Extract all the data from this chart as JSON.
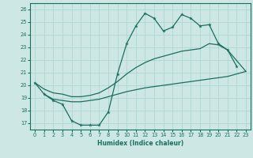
{
  "xlabel": "Humidex (Indice chaleur)",
  "background_color": "#cde8e4",
  "grid_color": "#aed4cf",
  "line_color": "#1a6e60",
  "ylim": [
    16.5,
    26.5
  ],
  "xlim": [
    -0.5,
    23.5
  ],
  "yticks": [
    17,
    18,
    19,
    20,
    21,
    22,
    23,
    24,
    25,
    26
  ],
  "xticks": [
    0,
    1,
    2,
    3,
    4,
    5,
    6,
    7,
    8,
    9,
    10,
    11,
    12,
    13,
    14,
    15,
    16,
    17,
    18,
    19,
    20,
    21,
    22,
    23
  ],
  "x_jagged": [
    0,
    1,
    2,
    3,
    4,
    5,
    6,
    7,
    8,
    9,
    10,
    11,
    12,
    13,
    14,
    15,
    16,
    17,
    18,
    19,
    20,
    21,
    22
  ],
  "y_jagged": [
    20.2,
    19.3,
    18.8,
    18.5,
    17.2,
    16.85,
    16.85,
    16.85,
    17.9,
    20.9,
    23.3,
    24.7,
    25.7,
    25.3,
    24.3,
    24.6,
    25.6,
    25.3,
    24.7,
    24.8,
    23.3,
    22.8,
    21.5
  ],
  "x_upper": [
    0,
    1,
    2,
    3,
    4,
    5,
    6,
    7,
    8,
    9,
    10,
    11,
    12,
    13,
    14,
    15,
    16,
    17,
    18,
    19,
    20,
    21,
    23
  ],
  "y_upper": [
    20.2,
    19.7,
    19.4,
    19.3,
    19.1,
    19.1,
    19.2,
    19.4,
    19.8,
    20.3,
    20.9,
    21.4,
    21.8,
    22.1,
    22.3,
    22.5,
    22.7,
    22.8,
    22.9,
    23.3,
    23.2,
    22.8,
    21.1
  ],
  "x_lower": [
    1,
    2,
    3,
    4,
    5,
    6,
    7,
    8,
    9,
    10,
    11,
    12,
    13,
    14,
    15,
    16,
    17,
    18,
    19,
    20,
    21,
    23
  ],
  "y_lower": [
    19.3,
    18.9,
    18.8,
    18.7,
    18.7,
    18.8,
    18.9,
    19.1,
    19.3,
    19.5,
    19.65,
    19.8,
    19.9,
    20.0,
    20.1,
    20.2,
    20.3,
    20.4,
    20.5,
    20.6,
    20.7,
    21.1
  ]
}
